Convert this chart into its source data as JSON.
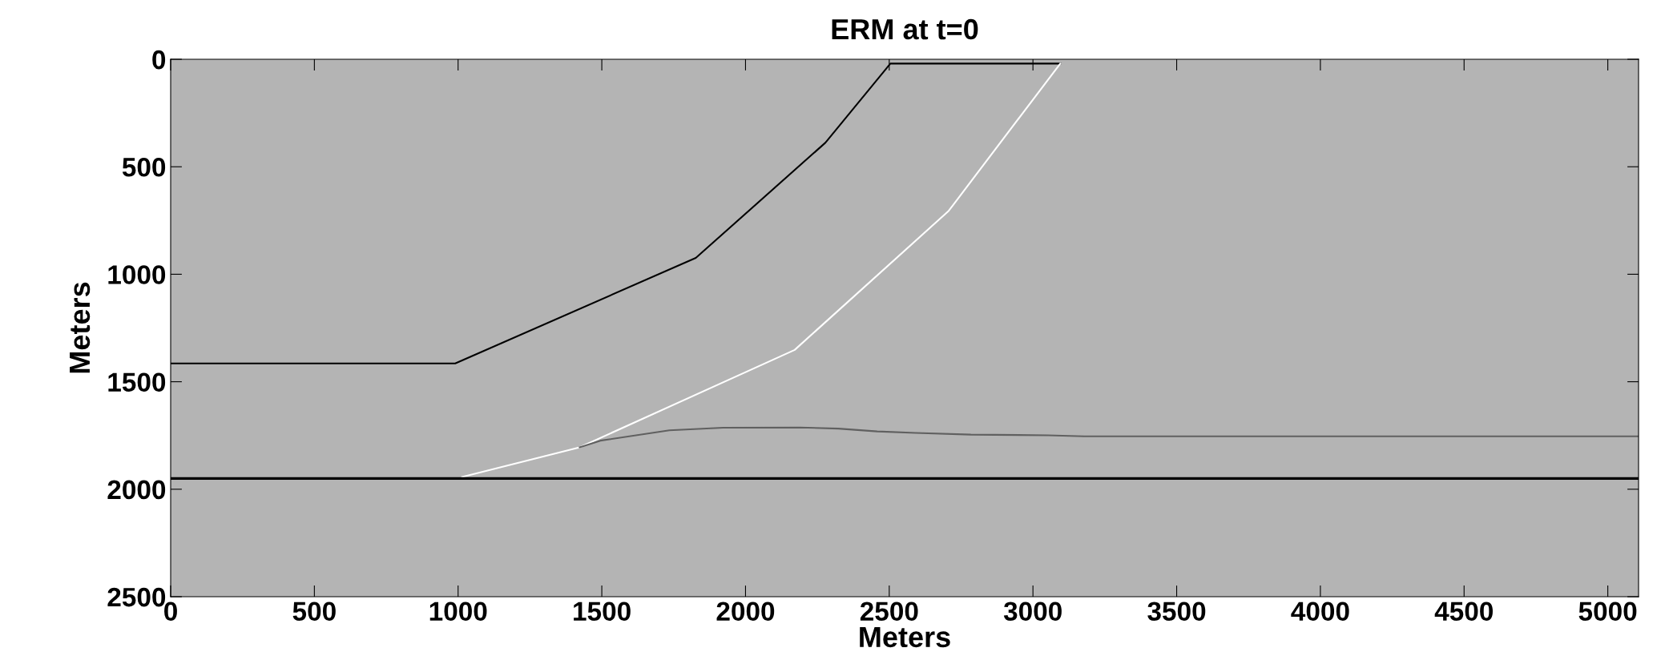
{
  "chart_data": {
    "type": "line",
    "title": "ERM at t=0",
    "xlabel": "Meters",
    "ylabel": "Meters",
    "xlim": [
      0,
      5107
    ],
    "ylim": [
      2500,
      0
    ],
    "xticks": [
      0,
      500,
      1000,
      1500,
      2000,
      2500,
      3000,
      3500,
      4000,
      4500,
      5000
    ],
    "yticks": [
      0,
      500,
      1000,
      1500,
      2000,
      2500
    ],
    "grid": false,
    "marker": "none",
    "line_style": "solid",
    "series": [
      {
        "color": "#000000",
        "x": [
          0,
          990,
          1827,
          2278,
          2504,
          3095
        ],
        "values": [
          1415,
          1415,
          924,
          388,
          20,
          20
        ]
      },
      {
        "color": "#ffffff",
        "x": [
          1014,
          1423,
          2171,
          2707,
          3095
        ],
        "values": [
          1943,
          1805,
          1352,
          705,
          20
        ]
      },
      {
        "color": "#606060",
        "x": [
          1423,
          1495,
          1735,
          1922,
          2189,
          2323,
          2458,
          2592,
          2784,
          3053,
          3178,
          5107
        ],
        "values": [
          1805,
          1774,
          1726,
          1714,
          1713,
          1718,
          1731,
          1738,
          1746,
          1749,
          1754,
          1754
        ]
      },
      {
        "color": "#000000",
        "x": [
          0,
          5107
        ],
        "values": [
          1950,
          1950
        ]
      }
    ]
  }
}
